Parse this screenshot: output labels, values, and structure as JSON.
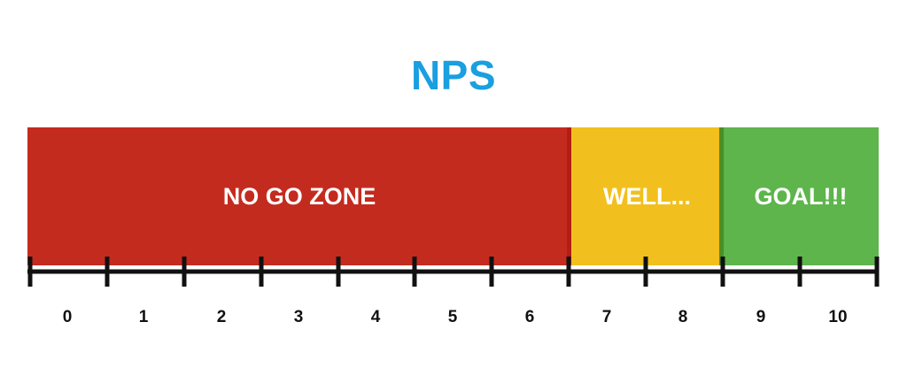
{
  "title": "NPS",
  "colors": {
    "title": "#1a9fe0",
    "red": "#c42b1f",
    "red_edge": "#b31e12",
    "yellow": "#f2c01e",
    "green": "#5db54b",
    "green_edge": "#4a8f25",
    "axis": "#111111"
  },
  "zones": [
    {
      "label": "NO GO ZONE",
      "from": 0,
      "to": 6,
      "color": "red"
    },
    {
      "label": "WELL...",
      "from": 7,
      "to": 8,
      "color": "yellow"
    },
    {
      "label": "GOAL!!!",
      "from": 9,
      "to": 10,
      "color": "green"
    }
  ],
  "scale": {
    "ticks": [
      "0",
      "1",
      "2",
      "3",
      "4",
      "5",
      "6",
      "7",
      "8",
      "9",
      "10"
    ]
  }
}
